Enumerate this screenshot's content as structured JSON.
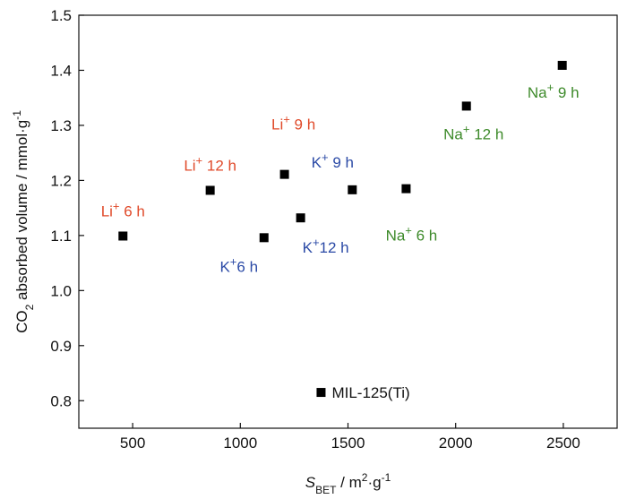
{
  "chart_data": {
    "type": "scatter",
    "title": "",
    "xlabel": {
      "main": "S",
      "sub": "BET",
      "rest": " / m",
      "sup": "2",
      "tail": "·g",
      "sup2": "-1"
    },
    "ylabel": {
      "pre": "CO",
      "sub": "2",
      "post": " absorbed volume / mmol·g",
      "sup": "-1"
    },
    "xlim": [
      250,
      2750
    ],
    "ylim": [
      0.75,
      1.5
    ],
    "x_ticks": [
      500,
      1000,
      1500,
      2000,
      2500
    ],
    "y_ticks": [
      0.8,
      0.9,
      1.0,
      1.1,
      1.2,
      1.3,
      1.4,
      1.5
    ],
    "x_tick_labels": [
      "500",
      "1000",
      "1500",
      "2000",
      "2500"
    ],
    "y_tick_labels": [
      "0.8",
      "0.9",
      "1.0",
      "1.1",
      "1.2",
      "1.3",
      "1.4",
      "1.5"
    ],
    "grid": false,
    "legend": "none",
    "colors": {
      "Li": "#e04a2a",
      "K": "#2b4aa6",
      "Na": "#3d8a2a",
      "MIL": "#111111"
    },
    "points": [
      {
        "x": 455,
        "y": 1.099,
        "ion": "Li",
        "sup": "+",
        "suffix": " 6 h",
        "group": "Li"
      },
      {
        "x": 860,
        "y": 1.182,
        "ion": "Li",
        "sup": "+",
        "suffix": " 12 h",
        "group": "Li"
      },
      {
        "x": 1205,
        "y": 1.211,
        "ion": "Li",
        "sup": "+",
        "suffix": " 9 h",
        "group": "Li"
      },
      {
        "x": 1110,
        "y": 1.096,
        "ion": "K",
        "sup": "+",
        "suffix": "6 h",
        "group": "K"
      },
      {
        "x": 1280,
        "y": 1.132,
        "ion": "K",
        "sup": "+",
        "suffix": "12 h",
        "group": "K"
      },
      {
        "x": 1520,
        "y": 1.183,
        "ion": "K",
        "sup": "+",
        "suffix": " 9 h",
        "group": "K"
      },
      {
        "x": 1770,
        "y": 1.185,
        "ion": "Na",
        "sup": "+",
        "suffix": " 6 h",
        "group": "Na"
      },
      {
        "x": 2050,
        "y": 1.335,
        "ion": "Na",
        "sup": "+",
        "suffix": " 12 h",
        "group": "Na"
      },
      {
        "x": 2495,
        "y": 1.409,
        "ion": "Na",
        "sup": "+",
        "suffix": " 9 h",
        "group": "Na"
      },
      {
        "x": 1375,
        "y": 0.815,
        "ion": "MIL-125(Ti)",
        "sup": "",
        "suffix": "",
        "group": "MIL"
      }
    ]
  }
}
